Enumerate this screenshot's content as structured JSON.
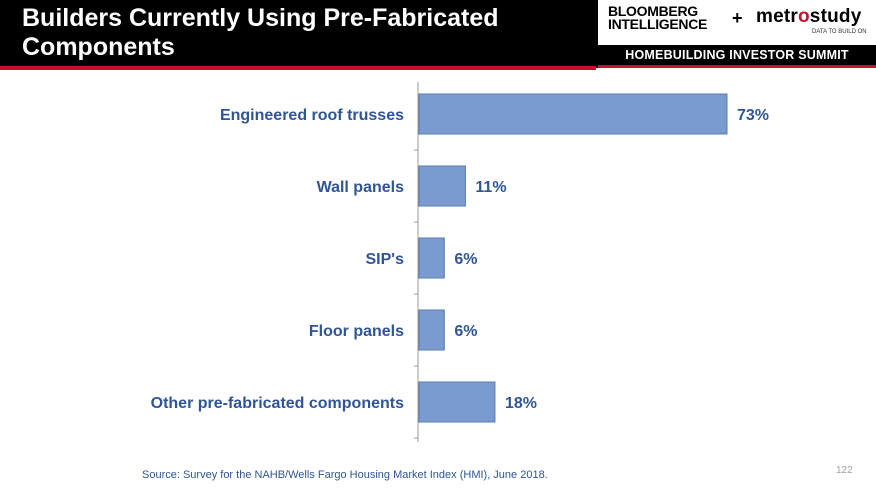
{
  "header": {
    "title": "Builders Currently Using Pre-Fabricated Components"
  },
  "branding": {
    "bloomberg": "BLOOMBERG INTELLIGENCE",
    "plus": "+",
    "metro_pre": "metr",
    "metro_o": "o",
    "metro_post": "study",
    "tagline": "DATA TO BUILD ON",
    "summit": "HOMEBUILDING INVESTOR SUMMIT"
  },
  "colors": {
    "header_bg": "#000000",
    "accent_red": "#c8102e",
    "bar_fill": "#7a9bcd",
    "bar_stroke": "#5a7bb0",
    "label_text": "#2f5597"
  },
  "chart_data": {
    "type": "bar",
    "orientation": "horizontal",
    "categories": [
      "Engineered roof trusses",
      "Wall panels",
      "SIP's",
      "Floor panels",
      "Other pre-fabricated components"
    ],
    "values": [
      73,
      11,
      6,
      6,
      18
    ],
    "data_labels": [
      "73%",
      "11%",
      "6%",
      "6%",
      "18%"
    ],
    "unit": "%",
    "title": "",
    "xlabel": "",
    "ylabel": "",
    "xlim": [
      0,
      73
    ],
    "grid": false,
    "legend": "none"
  },
  "footer": {
    "source": "Source: Survey for the NAHB/Wells Fargo Housing Market Index (HMI), June 2018.",
    "page_number": "122"
  }
}
